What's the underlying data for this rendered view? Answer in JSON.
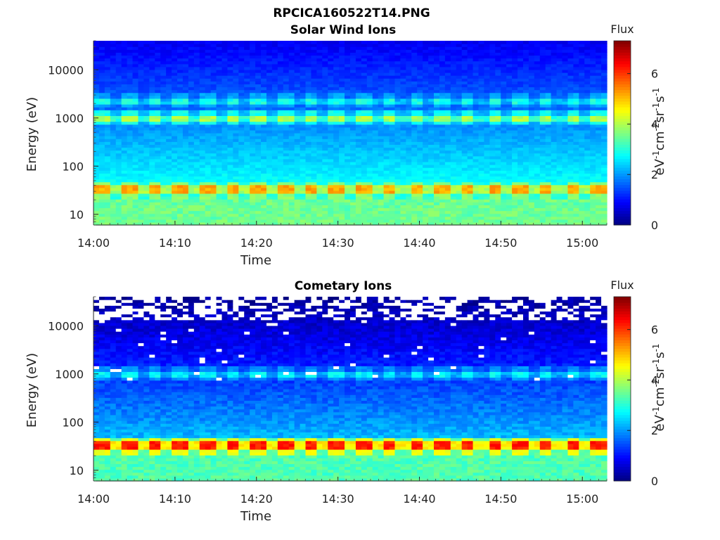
{
  "figure": {
    "title": "RPCICA160522T14.PNG"
  },
  "chart_data": [
    {
      "type": "heatmap",
      "title": "Solar Wind Ions",
      "xlabel": "Time",
      "ylabel": "Energy (eV)",
      "x_ticks": [
        "14:00",
        "14:10",
        "14:20",
        "14:30",
        "14:40",
        "14:50",
        "15:00"
      ],
      "xlim": [
        "14:00",
        "15:03"
      ],
      "y_scale": "log",
      "y_ticks": [
        10,
        100,
        1000,
        10000
      ],
      "ylim": [
        6,
        40000
      ],
      "colorbar": {
        "title": "Flux",
        "label": "eV-1cm-2sr-1s-1",
        "ticks": [
          0,
          2,
          4,
          6
        ],
        "range": [
          0,
          7.3
        ],
        "colormap": "jet"
      },
      "grid": false,
      "features": [
        {
          "energy_eV": 1000,
          "flux": 4.0,
          "period_min": 3.2,
          "desc": "pulsed band"
        },
        {
          "energy_eV": 2300,
          "flux": 2.9,
          "period_min": 3.2,
          "desc": "faint pulsed band"
        },
        {
          "energy_eV": 32,
          "flux": 5.2,
          "period_min": 3.2,
          "desc": "strong pulsed band"
        },
        {
          "energy_eV": 10,
          "flux": 3.5,
          "desc": "continuous low-energy flux"
        }
      ]
    },
    {
      "type": "heatmap",
      "title": "Cometary Ions",
      "xlabel": "Time",
      "ylabel": "Energy (eV)",
      "x_ticks": [
        "14:00",
        "14:10",
        "14:20",
        "14:30",
        "14:40",
        "14:50",
        "15:00"
      ],
      "xlim": [
        "14:00",
        "15:03"
      ],
      "y_scale": "log",
      "y_ticks": [
        10,
        100,
        1000,
        10000
      ],
      "ylim": [
        6,
        40000
      ],
      "colorbar": {
        "title": "Flux",
        "label": "eV-1cm-2sr-1s-1",
        "ticks": [
          0,
          2,
          4,
          6
        ],
        "range": [
          0,
          7.3
        ],
        "colormap": "jet"
      },
      "grid": false,
      "features": [
        {
          "energy_eV": 1000,
          "flux": 2.7,
          "period_min": 3.2,
          "desc": "pulsed band"
        },
        {
          "energy_eV": 32,
          "flux": 6.2,
          "period_min": 3.2,
          "desc": "strong pulsed band"
        },
        {
          "energy_eV": 10,
          "flux": 3.3,
          "desc": "continuous low-energy flux"
        },
        {
          "energy_eV": 20000,
          "flux": 0.5,
          "desc": "sparse counts with empty bins"
        }
      ]
    }
  ]
}
